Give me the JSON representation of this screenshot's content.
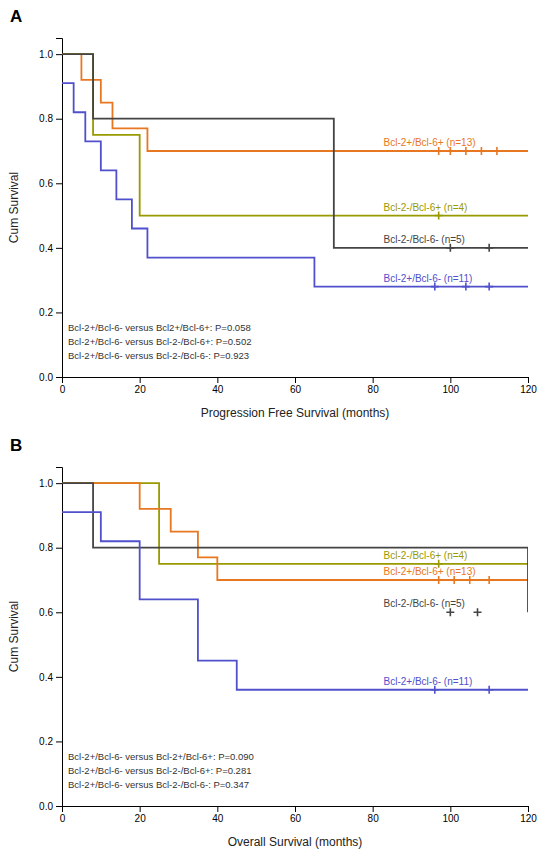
{
  "chart_data": [
    {
      "type": "step",
      "title": "A",
      "xlabel": "Progression Free Survival (months)",
      "ylabel": "Cum Survival",
      "annotations": [
        "Bcl-2+/Bcl-6- versus Bcl2+/Bcl-6+: P=0.058",
        "Bcl-2+/Bcl-6- versus Bcl-2-/Bcl-6+: P=0.502",
        "Bcl-2+/Bcl-6- versus Bcl-2-/Bcl-6-: P=0.923"
      ],
      "xlim": [
        0,
        120
      ],
      "ylim": [
        0.0,
        1.05
      ],
      "xticks": [
        0,
        20,
        40,
        60,
        80,
        100,
        120
      ],
      "yticks": [
        {
          "value": 0.0,
          "label": "0.0"
        },
        0.2,
        0.4,
        0.6,
        0.8,
        {
          "value": 1.0,
          "label": "1.0"
        }
      ],
      "grid": false,
      "series": [
        {
          "name": "Bcl-2+/Bcl-6+ (n=13)",
          "color": "#E87722",
          "marker": "plus",
          "x": [
            0,
            5,
            10,
            13,
            22,
            120
          ],
          "values": [
            1.0,
            0.92,
            0.85,
            0.77,
            0.7,
            0.7
          ],
          "censor_x": [
            97,
            100,
            104,
            108,
            112
          ],
          "censor_values": [
            0.7,
            0.7,
            0.7,
            0.7,
            0.7
          ]
        },
        {
          "name": "Bcl-2-/Bcl-6+ (n=4)",
          "color": "#999900",
          "marker": "plus",
          "x": [
            0,
            8,
            20,
            120
          ],
          "values": [
            1.0,
            0.75,
            0.5,
            0.5
          ],
          "censor_x": [
            97
          ],
          "censor_values": [
            0.5
          ]
        },
        {
          "name": "Bcl-2-/Bcl-6- (n=5)",
          "color": "#444444",
          "marker": "plus",
          "x": [
            0,
            8,
            60,
            70,
            120
          ],
          "values": [
            1.0,
            0.8,
            0.8,
            0.4,
            0.4
          ],
          "censor_x": [
            100,
            110
          ],
          "censor_values": [
            0.4,
            0.4
          ]
        },
        {
          "name": "Bcl-2+/Bcl-6- (n=11)",
          "color": "#5050CC",
          "marker": "plus",
          "x": [
            0,
            3,
            6,
            10,
            14,
            18,
            22,
            26,
            30,
            65,
            90,
            120
          ],
          "values": [
            0.91,
            0.82,
            0.73,
            0.64,
            0.55,
            0.46,
            0.37,
            0.37,
            0.37,
            0.28,
            0.28,
            0.28
          ],
          "censor_x": [
            96,
            104,
            110
          ],
          "censor_values": [
            0.28,
            0.28,
            0.28
          ]
        }
      ]
    },
    {
      "type": "step",
      "title": "B",
      "xlabel": "Overall Survival (months)",
      "ylabel": "Cum Survival",
      "annotations": [
        "Bcl-2+/Bcl-6- versus Bcl-2+/Bcl-6+: P=0.090",
        "Bcl-2+/Bcl-6- versus Bcl-2-/Bcl-6+: P=0.281",
        "Bcl-2+/Bcl-6- versus Bcl-2-/Bcl-6-: P=0.347"
      ],
      "xlim": [
        0,
        120
      ],
      "ylim": [
        0.0,
        1.05
      ],
      "xticks": [
        0,
        20,
        40,
        60,
        80,
        100,
        120
      ],
      "yticks": [
        {
          "value": 0.0,
          "label": "0.0"
        },
        0.2,
        0.4,
        0.6,
        0.8,
        {
          "value": 1.0,
          "label": "1.0"
        }
      ],
      "grid": false,
      "series": [
        {
          "name": "Bcl-2-/Bcl-6+ (n=4)",
          "color": "#999900",
          "marker": "plus",
          "x": [
            0,
            10,
            25,
            120
          ],
          "values": [
            1.0,
            1.0,
            0.75,
            0.75
          ],
          "censor_x": [
            97
          ],
          "censor_values": [
            0.75
          ]
        },
        {
          "name": "Bcl-2+/Bcl-6+ (n=13)",
          "color": "#E87722",
          "marker": "plus",
          "x": [
            0,
            20,
            28,
            35,
            40,
            70,
            120
          ],
          "values": [
            1.0,
            0.92,
            0.85,
            0.77,
            0.7,
            0.7,
            0.7
          ],
          "censor_x": [
            97,
            101,
            105,
            110
          ],
          "censor_values": [
            0.7,
            0.7,
            0.7,
            0.7
          ]
        },
        {
          "name": "Bcl-2-/Bcl-6- (n=5)",
          "color": "#444444",
          "marker": "plus",
          "x": [
            0,
            8,
            100,
            120
          ],
          "values": [
            1.0,
            0.8,
            0.8,
            0.6
          ],
          "censor_x": [
            100,
            107
          ],
          "censor_values": [
            0.6,
            0.6
          ]
        },
        {
          "name": "Bcl-2+/Bcl-6- (n=11)",
          "color": "#5050CC",
          "marker": "plus",
          "x": [
            0,
            10,
            20,
            35,
            45,
            70,
            90,
            120
          ],
          "values": [
            0.91,
            0.82,
            0.64,
            0.45,
            0.36,
            0.36,
            0.36,
            0.36
          ],
          "censor_x": [
            96,
            110
          ],
          "censor_values": [
            0.36,
            0.36
          ]
        }
      ]
    }
  ]
}
